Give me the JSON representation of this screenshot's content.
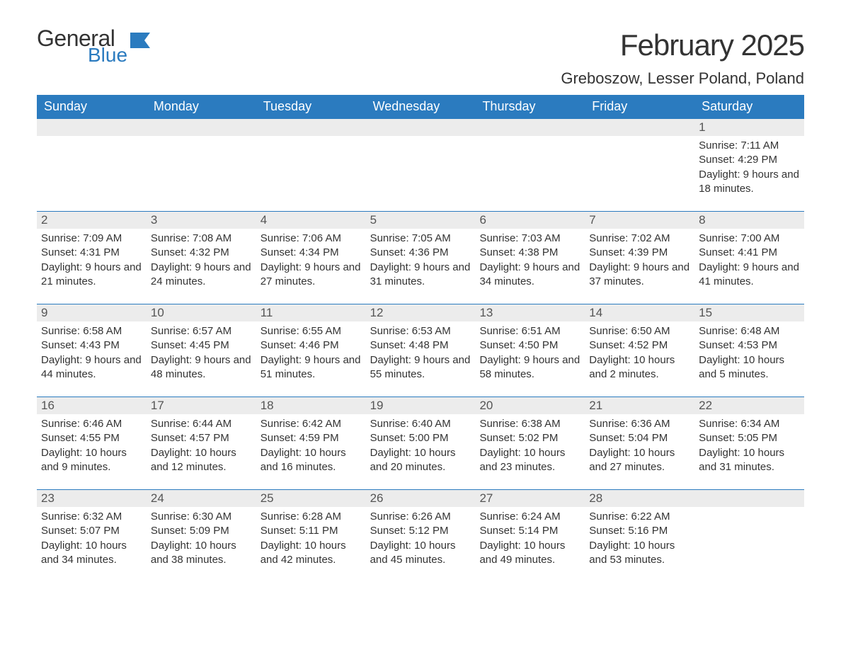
{
  "logo": {
    "text1": "General",
    "text2": "Blue",
    "color_general": "#333333",
    "color_blue": "#2b7bbf",
    "flag_color": "#2b7bbf"
  },
  "header": {
    "month_title": "February 2025",
    "location": "Greboszow, Lesser Poland, Poland"
  },
  "colors": {
    "header_bar": "#2b7bbf",
    "header_text": "#ffffff",
    "day_num_bg": "#ececec",
    "row_border": "#2b7bbf",
    "body_text": "#333333",
    "background": "#ffffff"
  },
  "weekdays": [
    "Sunday",
    "Monday",
    "Tuesday",
    "Wednesday",
    "Thursday",
    "Friday",
    "Saturday"
  ],
  "layout": {
    "first_day_column_index": 6,
    "days_in_month": 28,
    "columns": 7
  },
  "days": [
    {
      "n": 1,
      "sunrise": "7:11 AM",
      "sunset": "4:29 PM",
      "daylight": "9 hours and 18 minutes."
    },
    {
      "n": 2,
      "sunrise": "7:09 AM",
      "sunset": "4:31 PM",
      "daylight": "9 hours and 21 minutes."
    },
    {
      "n": 3,
      "sunrise": "7:08 AM",
      "sunset": "4:32 PM",
      "daylight": "9 hours and 24 minutes."
    },
    {
      "n": 4,
      "sunrise": "7:06 AM",
      "sunset": "4:34 PM",
      "daylight": "9 hours and 27 minutes."
    },
    {
      "n": 5,
      "sunrise": "7:05 AM",
      "sunset": "4:36 PM",
      "daylight": "9 hours and 31 minutes."
    },
    {
      "n": 6,
      "sunrise": "7:03 AM",
      "sunset": "4:38 PM",
      "daylight": "9 hours and 34 minutes."
    },
    {
      "n": 7,
      "sunrise": "7:02 AM",
      "sunset": "4:39 PM",
      "daylight": "9 hours and 37 minutes."
    },
    {
      "n": 8,
      "sunrise": "7:00 AM",
      "sunset": "4:41 PM",
      "daylight": "9 hours and 41 minutes."
    },
    {
      "n": 9,
      "sunrise": "6:58 AM",
      "sunset": "4:43 PM",
      "daylight": "9 hours and 44 minutes."
    },
    {
      "n": 10,
      "sunrise": "6:57 AM",
      "sunset": "4:45 PM",
      "daylight": "9 hours and 48 minutes."
    },
    {
      "n": 11,
      "sunrise": "6:55 AM",
      "sunset": "4:46 PM",
      "daylight": "9 hours and 51 minutes."
    },
    {
      "n": 12,
      "sunrise": "6:53 AM",
      "sunset": "4:48 PM",
      "daylight": "9 hours and 55 minutes."
    },
    {
      "n": 13,
      "sunrise": "6:51 AM",
      "sunset": "4:50 PM",
      "daylight": "9 hours and 58 minutes."
    },
    {
      "n": 14,
      "sunrise": "6:50 AM",
      "sunset": "4:52 PM",
      "daylight": "10 hours and 2 minutes."
    },
    {
      "n": 15,
      "sunrise": "6:48 AM",
      "sunset": "4:53 PM",
      "daylight": "10 hours and 5 minutes."
    },
    {
      "n": 16,
      "sunrise": "6:46 AM",
      "sunset": "4:55 PM",
      "daylight": "10 hours and 9 minutes."
    },
    {
      "n": 17,
      "sunrise": "6:44 AM",
      "sunset": "4:57 PM",
      "daylight": "10 hours and 12 minutes."
    },
    {
      "n": 18,
      "sunrise": "6:42 AM",
      "sunset": "4:59 PM",
      "daylight": "10 hours and 16 minutes."
    },
    {
      "n": 19,
      "sunrise": "6:40 AM",
      "sunset": "5:00 PM",
      "daylight": "10 hours and 20 minutes."
    },
    {
      "n": 20,
      "sunrise": "6:38 AM",
      "sunset": "5:02 PM",
      "daylight": "10 hours and 23 minutes."
    },
    {
      "n": 21,
      "sunrise": "6:36 AM",
      "sunset": "5:04 PM",
      "daylight": "10 hours and 27 minutes."
    },
    {
      "n": 22,
      "sunrise": "6:34 AM",
      "sunset": "5:05 PM",
      "daylight": "10 hours and 31 minutes."
    },
    {
      "n": 23,
      "sunrise": "6:32 AM",
      "sunset": "5:07 PM",
      "daylight": "10 hours and 34 minutes."
    },
    {
      "n": 24,
      "sunrise": "6:30 AM",
      "sunset": "5:09 PM",
      "daylight": "10 hours and 38 minutes."
    },
    {
      "n": 25,
      "sunrise": "6:28 AM",
      "sunset": "5:11 PM",
      "daylight": "10 hours and 42 minutes."
    },
    {
      "n": 26,
      "sunrise": "6:26 AM",
      "sunset": "5:12 PM",
      "daylight": "10 hours and 45 minutes."
    },
    {
      "n": 27,
      "sunrise": "6:24 AM",
      "sunset": "5:14 PM",
      "daylight": "10 hours and 49 minutes."
    },
    {
      "n": 28,
      "sunrise": "6:22 AM",
      "sunset": "5:16 PM",
      "daylight": "10 hours and 53 minutes."
    }
  ],
  "labels": {
    "sunrise": "Sunrise:",
    "sunset": "Sunset:",
    "daylight": "Daylight:"
  }
}
